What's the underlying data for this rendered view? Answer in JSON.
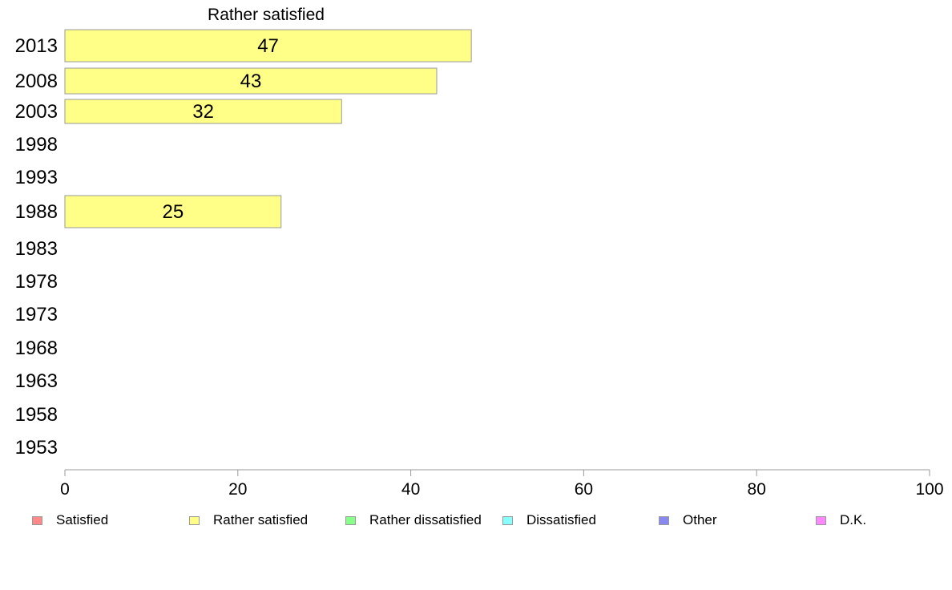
{
  "chart_data": {
    "type": "bar",
    "orientation": "horizontal",
    "title": "Rather satisfied",
    "categories": [
      "2013",
      "2008",
      "2003",
      "1998",
      "1993",
      "1988",
      "1983",
      "1978",
      "1973",
      "1968",
      "1963",
      "1958",
      "1953"
    ],
    "series": [
      {
        "name": "Rather satisfied",
        "color": "#ffff88",
        "values": [
          47,
          43,
          32,
          null,
          null,
          25,
          null,
          null,
          null,
          null,
          null,
          null,
          null
        ]
      }
    ],
    "data_labels": [
      "47",
      "43",
      "32",
      "",
      "",
      "25",
      "",
      "",
      "",
      "",
      "",
      "",
      ""
    ],
    "xlim": [
      0,
      100
    ],
    "xticks": [
      "0",
      "20",
      "40",
      "60",
      "80",
      "100"
    ],
    "xlabel": "",
    "ylabel": "",
    "grid": false,
    "legend_position": "bottom"
  },
  "legend": [
    {
      "label": "Satisfied",
      "color": "#ff8888"
    },
    {
      "label": "Rather satisfied",
      "color": "#ffff88"
    },
    {
      "label": "Rather dissatisfied",
      "color": "#88ff88"
    },
    {
      "label": "Dissatisfied",
      "color": "#88ffff"
    },
    {
      "label": "Other",
      "color": "#8888ee"
    },
    {
      "label": "D.K.",
      "color": "#ff88ff"
    }
  ]
}
